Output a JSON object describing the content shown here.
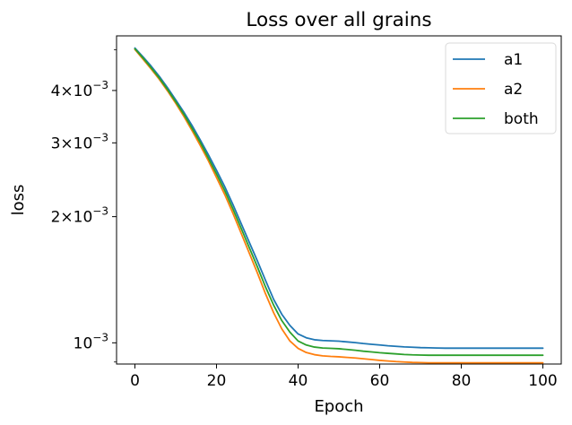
{
  "chart_data": {
    "type": "line",
    "title": "Loss over all grains",
    "xlabel": "Epoch",
    "ylabel": "loss",
    "yscale": "log",
    "xlim": [
      -4.5,
      104.5
    ],
    "ylim": [
      0.00089,
      0.0054
    ],
    "xticks": [
      0,
      20,
      40,
      60,
      80,
      100
    ],
    "xtick_labels": [
      "0",
      "20",
      "40",
      "60",
      "80",
      "100"
    ],
    "yticks_major": [
      {
        "value": 0.001,
        "mantissa": "",
        "exponent": "−3"
      },
      {
        "value": 0.002,
        "mantissa": "2×",
        "exponent": "−3"
      },
      {
        "value": 0.003,
        "mantissa": "3×",
        "exponent": "−3"
      },
      {
        "value": 0.004,
        "mantissa": "4×",
        "exponent": "−3"
      }
    ],
    "yticks_minor": [
      0.005
    ],
    "grid": false,
    "legend_position": "top-right",
    "x": [
      0,
      2,
      4,
      6,
      8,
      10,
      12,
      14,
      16,
      18,
      20,
      22,
      24,
      26,
      28,
      30,
      32,
      34,
      36,
      38,
      40,
      42,
      44,
      46,
      48,
      50,
      52,
      54,
      56,
      58,
      60,
      62,
      64,
      66,
      68,
      70,
      72,
      74,
      76,
      78,
      80,
      82,
      84,
      86,
      88,
      90,
      92,
      94,
      96,
      98,
      100
    ],
    "series": [
      {
        "name": "a1",
        "color": "#1f77b4",
        "values": [
          0.00505,
          0.00481,
          0.00457,
          0.00432,
          0.00406,
          0.0038,
          0.00355,
          0.0033,
          0.00305,
          0.00281,
          0.00258,
          0.00236,
          0.00214,
          0.00193,
          0.00174,
          0.00157,
          0.00141,
          0.00127,
          0.00117,
          0.0011,
          0.00105,
          0.001028,
          0.001017,
          0.001013,
          0.001011,
          0.001009,
          0.001005,
          0.001001,
          0.000996,
          0.000992,
          0.000988,
          0.000984,
          0.000981,
          0.000978,
          0.000976,
          0.000974,
          0.000973,
          0.000972,
          0.000971,
          0.000971,
          0.000971,
          0.000971,
          0.000971,
          0.000971,
          0.000971,
          0.000971,
          0.000971,
          0.000971,
          0.000971,
          0.000971,
          0.000971
        ]
      },
      {
        "name": "a2",
        "color": "#ff7f0e",
        "values": [
          0.00501,
          0.00475,
          0.0045,
          0.00425,
          0.00399,
          0.00373,
          0.00347,
          0.00321,
          0.00296,
          0.00272,
          0.00248,
          0.00226,
          0.00204,
          0.00183,
          0.00164,
          0.00147,
          0.00131,
          0.00118,
          0.00108,
          0.00101,
          0.00097,
          0.000948,
          0.000937,
          0.000931,
          0.000928,
          0.000926,
          0.000923,
          0.00092,
          0.000916,
          0.000912,
          0.000908,
          0.000905,
          0.000902,
          0.0009,
          0.000898,
          0.000897,
          0.000896,
          0.000896,
          0.000896,
          0.000896,
          0.000896,
          0.000896,
          0.000896,
          0.000896,
          0.000896,
          0.000896,
          0.000896,
          0.000896,
          0.000896,
          0.000896,
          0.000896
        ]
      },
      {
        "name": "both",
        "color": "#2ca02c",
        "values": [
          0.00503,
          0.00478,
          0.00453,
          0.00428,
          0.00402,
          0.00376,
          0.00351,
          0.00325,
          0.00301,
          0.00276,
          0.00253,
          0.00231,
          0.00209,
          0.00188,
          0.00169,
          0.00152,
          0.00136,
          0.00123,
          0.00113,
          0.00106,
          0.00101,
          0.000988,
          0.000977,
          0.000972,
          0.00097,
          0.000968,
          0.000964,
          0.00096,
          0.000955,
          0.000951,
          0.000947,
          0.000944,
          0.000941,
          0.000938,
          0.000936,
          0.000935,
          0.000934,
          0.000934,
          0.000934,
          0.000934,
          0.000934,
          0.000934,
          0.000934,
          0.000934,
          0.000934,
          0.000934,
          0.000934,
          0.000934,
          0.000934,
          0.000934,
          0.000934
        ]
      }
    ]
  }
}
